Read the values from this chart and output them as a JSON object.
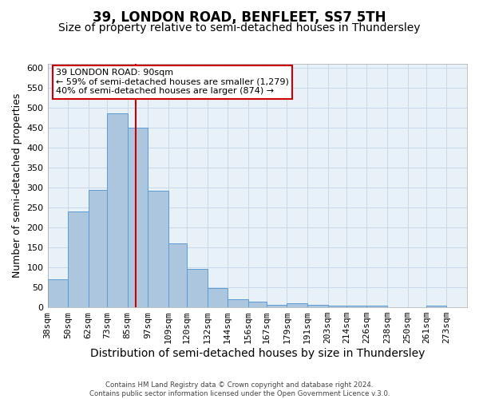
{
  "title": "39, LONDON ROAD, BENFLEET, SS7 5TH",
  "subtitle": "Size of property relative to semi-detached houses in Thundersley",
  "xlabel": "Distribution of semi-detached houses by size in Thundersley",
  "ylabel": "Number of semi-detached properties",
  "bin_labels": [
    "38sqm",
    "50sqm",
    "62sqm",
    "73sqm",
    "85sqm",
    "97sqm",
    "109sqm",
    "120sqm",
    "132sqm",
    "144sqm",
    "156sqm",
    "167sqm",
    "179sqm",
    "191sqm",
    "203sqm",
    "214sqm",
    "226sqm",
    "238sqm",
    "250sqm",
    "261sqm",
    "273sqm"
  ],
  "bin_edges": [
    38,
    50,
    62,
    73,
    85,
    97,
    109,
    120,
    132,
    144,
    156,
    167,
    179,
    191,
    203,
    214,
    226,
    238,
    250,
    261,
    273
  ],
  "bar_heights": [
    70,
    240,
    295,
    487,
    450,
    293,
    161,
    96,
    48,
    21,
    15,
    6,
    10,
    7,
    5,
    5,
    5,
    0,
    0,
    5
  ],
  "bar_color": "#adc6e0",
  "bar_edge_color": "#5b9bd5",
  "property_value": 90,
  "vline_color": "#cc0000",
  "annotation_line1": "39 LONDON ROAD: 90sqm",
  "annotation_line2": "← 59% of semi-detached houses are smaller (1,279)",
  "annotation_line3": "40% of semi-detached houses are larger (874) →",
  "annotation_box_color": "#ffffff",
  "annotation_box_edge_color": "#cc0000",
  "ylim": [
    0,
    610
  ],
  "yticks": [
    0,
    50,
    100,
    150,
    200,
    250,
    300,
    350,
    400,
    450,
    500,
    550,
    600
  ],
  "grid_color": "#c8d8e8",
  "plot_bg_color": "#e8f0f8",
  "fig_bg_color": "#ffffff",
  "footer_text": "Contains HM Land Registry data © Crown copyright and database right 2024.\nContains public sector information licensed under the Open Government Licence v.3.0.",
  "title_fontsize": 12,
  "subtitle_fontsize": 10,
  "xlabel_fontsize": 10,
  "ylabel_fontsize": 9,
  "tick_fontsize": 8
}
